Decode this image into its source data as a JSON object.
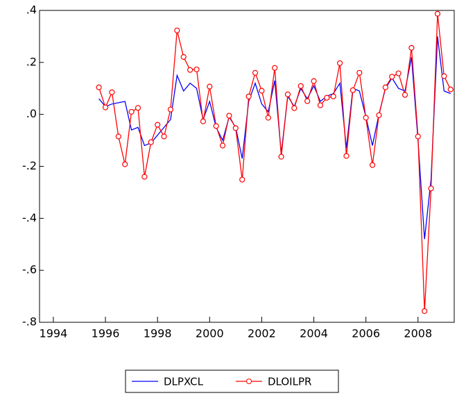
{
  "chart_data": {
    "type": "line",
    "x": [
      1995.75,
      1996,
      1996.25,
      1996.5,
      1996.75,
      1997,
      1997.25,
      1997.5,
      1997.75,
      1998,
      1998.25,
      1998.5,
      1998.75,
      1999,
      1999.25,
      1999.5,
      1999.75,
      2000,
      2000.25,
      2000.5,
      2000.75,
      2001,
      2001.25,
      2001.5,
      2001.75,
      2002,
      2002.25,
      2002.5,
      2002.75,
      2003,
      2003.25,
      2003.5,
      2003.75,
      2004,
      2004.25,
      2004.5,
      2004.75,
      2005,
      2005.25,
      2005.5,
      2005.75,
      2006,
      2006.25,
      2006.5,
      2006.75,
      2007,
      2007.25,
      2007.5,
      2007.75,
      2008,
      2008.25,
      2008.5,
      2008.75,
      2009,
      2009.25
    ],
    "series": [
      {
        "name": "DLPXCL",
        "color": "#0000ff",
        "values": [
          0.06,
          0.03,
          0.04,
          0.045,
          0.05,
          -0.06,
          -0.05,
          -0.12,
          -0.11,
          -0.08,
          -0.05,
          -0.02,
          0.15,
          0.09,
          0.12,
          0.1,
          -0.02,
          0.05,
          -0.05,
          -0.1,
          -0.01,
          -0.05,
          -0.17,
          0.05,
          0.12,
          0.04,
          0.01,
          0.13,
          -0.15,
          0.07,
          0.03,
          0.1,
          0.06,
          0.11,
          0.05,
          0.07,
          0.08,
          0.12,
          -0.13,
          0.1,
          0.09,
          -0.01,
          -0.12,
          0.0,
          0.1,
          0.14,
          0.1,
          0.09,
          0.22,
          -0.1,
          -0.48,
          -0.25,
          0.3,
          0.09,
          0.08
        ]
      },
      {
        "name": "DLOILPR",
        "color": "#ff0000",
        "marker": "circle",
        "values": [
          0.104,
          0.027,
          0.085,
          -0.085,
          -0.192,
          0.01,
          0.025,
          -0.24,
          -0.107,
          -0.04,
          -0.085,
          0.019,
          0.323,
          0.221,
          0.171,
          0.173,
          -0.027,
          0.107,
          -0.045,
          -0.12,
          -0.005,
          -0.053,
          -0.251,
          0.069,
          0.16,
          0.091,
          -0.013,
          0.179,
          -0.163,
          0.077,
          0.024,
          0.109,
          0.051,
          0.128,
          0.035,
          0.064,
          0.069,
          0.197,
          -0.16,
          0.093,
          0.16,
          -0.013,
          -0.195,
          -0.003,
          0.104,
          0.145,
          0.158,
          0.075,
          0.256,
          -0.085,
          -0.757,
          -0.285,
          0.387,
          0.147,
          0.096
        ]
      }
    ],
    "xlim": [
      1993.47,
      2009.39
    ],
    "xticks": [
      1994,
      1996,
      1998,
      2000,
      2002,
      2004,
      2006,
      2008
    ],
    "ylim": [
      -0.8,
      0.4
    ],
    "yticks": [
      {
        "value": 0.4,
        "label": ".4"
      },
      {
        "value": 0.2,
        "label": ".2"
      },
      {
        "value": 0,
        "label": ".0"
      },
      {
        "value": -0.2,
        "label": "-.2"
      },
      {
        "value": -0.4,
        "label": "-.4"
      },
      {
        "value": -0.6,
        "label": "-.6"
      },
      {
        "value": -0.8,
        "label": "-.8"
      }
    ],
    "grid": false,
    "legend": "bottom"
  }
}
